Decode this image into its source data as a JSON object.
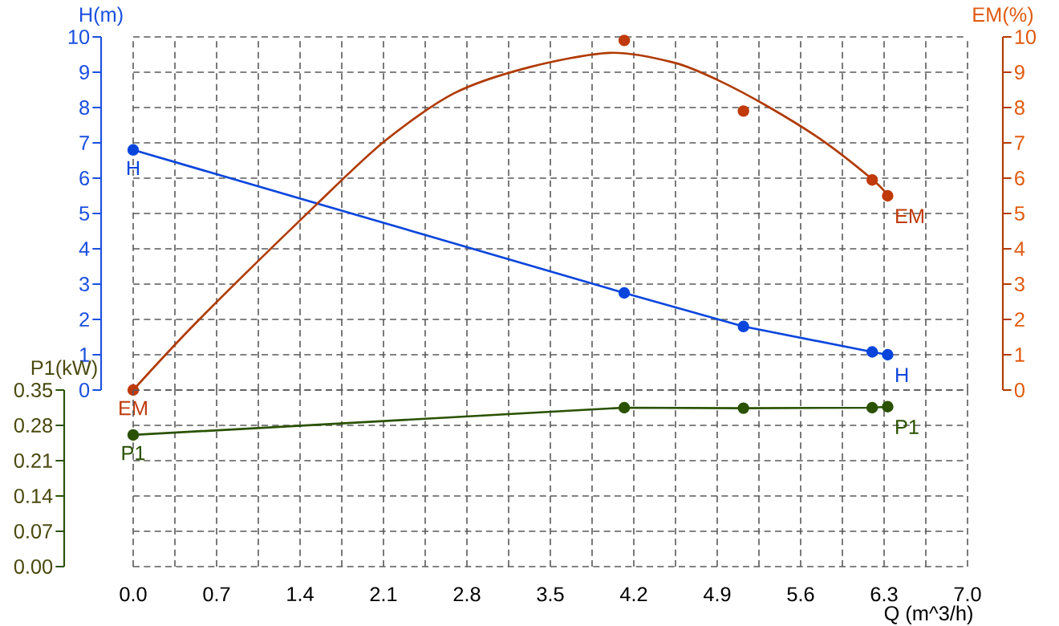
{
  "chart_data": [
    {
      "type": "line",
      "ylabel": "H(m)",
      "y2label": "EM(%)",
      "xlim": [
        0,
        7
      ],
      "xticks": [
        {
          "value": 0,
          "label": null
        },
        {
          "value": 0.35,
          "label": null
        },
        {
          "value": 0.7,
          "label": null
        },
        {
          "value": 1.05,
          "label": null
        },
        {
          "value": 1.4,
          "label": null
        },
        {
          "value": 1.75,
          "label": null
        },
        {
          "value": 2.1,
          "label": null
        },
        {
          "value": 2.45,
          "label": null
        },
        {
          "value": 2.8,
          "label": null
        },
        {
          "value": 3.15,
          "label": null
        },
        {
          "value": 3.5,
          "label": null
        },
        {
          "value": 3.85,
          "label": null
        },
        {
          "value": 4.2,
          "label": null
        },
        {
          "value": 4.55,
          "label": null
        },
        {
          "value": 4.9,
          "label": null
        },
        {
          "value": 5.25,
          "label": null
        },
        {
          "value": 5.6,
          "label": null
        },
        {
          "value": 5.95,
          "label": null
        },
        {
          "value": 6.3,
          "label": null
        },
        {
          "value": 6.65,
          "label": null
        },
        {
          "value": 7,
          "label": null
        }
      ],
      "ylim": [
        0,
        10
      ],
      "yticks": [
        0,
        1,
        2,
        3,
        4,
        5,
        6,
        7,
        8,
        9,
        10
      ],
      "y2lim": [
        0,
        10
      ],
      "y2ticks": [
        0,
        1,
        2,
        3,
        4,
        5,
        6,
        7,
        8,
        9,
        10
      ],
      "grid": true,
      "line_style": "solid",
      "tick_labels": "y",
      "series": [
        {
          "name": "H",
          "type": "line",
          "axis": "y",
          "marker": "circle",
          "color": "#0a46dc",
          "x": [
            0,
            4.12,
            5.12,
            6.2,
            6.33
          ],
          "values": [
            6.8,
            2.75,
            1.8,
            1.08,
            1.0
          ]
        },
        {
          "name": "EM",
          "type": "scatter",
          "axis": "y2",
          "marker": "circle",
          "color": "#c03a0a",
          "x": [
            0,
            4.12,
            5.12,
            6.2,
            6.33
          ],
          "values": [
            0,
            9.9,
            7.9,
            5.95,
            5.5
          ]
        },
        {
          "axis": "y2",
          "marker": "none",
          "color": "#b03a00",
          "x": [
            0,
            0.54,
            1.53,
            2.11,
            2.69,
            3.32,
            4.0,
            4.54,
            4.91,
            5.34,
            5.79,
            6.19,
            6.34
          ],
          "values": [
            0,
            1.95,
            5.23,
            7.05,
            8.4,
            9.14,
            9.55,
            9.27,
            8.77,
            8.0,
            7.05,
            6.0,
            5.5
          ]
        }
      ]
    },
    {
      "type": "line",
      "ylabel": "P1(kW)",
      "xlabel": "Q (m^3/h)",
      "xlim": [
        0,
        7
      ],
      "xticks": [
        {
          "value": 0,
          "label": "0.0"
        },
        {
          "value": 0.35,
          "label": null
        },
        0.7,
        {
          "value": 1.05,
          "label": null
        },
        1.4,
        {
          "value": 1.75,
          "label": null
        },
        2.1,
        {
          "value": 2.45,
          "label": null
        },
        2.8,
        {
          "value": 3.15,
          "label": null
        },
        3.5,
        {
          "value": 3.85,
          "label": null
        },
        4.2,
        {
          "value": 4.55,
          "label": null
        },
        4.9,
        {
          "value": 5.25,
          "label": null
        },
        5.6,
        {
          "value": 5.95,
          "label": null
        },
        6.3,
        {
          "value": 6.65,
          "label": null
        },
        {
          "value": 7,
          "label": "7.0"
        }
      ],
      "ylim": [
        0,
        0.35
      ],
      "yticks": [
        {
          "value": 0,
          "label": "0.00"
        },
        0.07,
        0.14,
        0.21,
        0.28,
        0.35
      ],
      "grid": true,
      "line_style": "solid",
      "series": [
        {
          "name": "P1",
          "type": "line",
          "axis": "y",
          "marker": "circle",
          "color": "#2a5200",
          "x": [
            0,
            4.12,
            5.12,
            6.2,
            6.33
          ],
          "values": [
            0.261,
            0.315,
            0.314,
            0.315,
            0.317
          ]
        }
      ]
    }
  ]
}
